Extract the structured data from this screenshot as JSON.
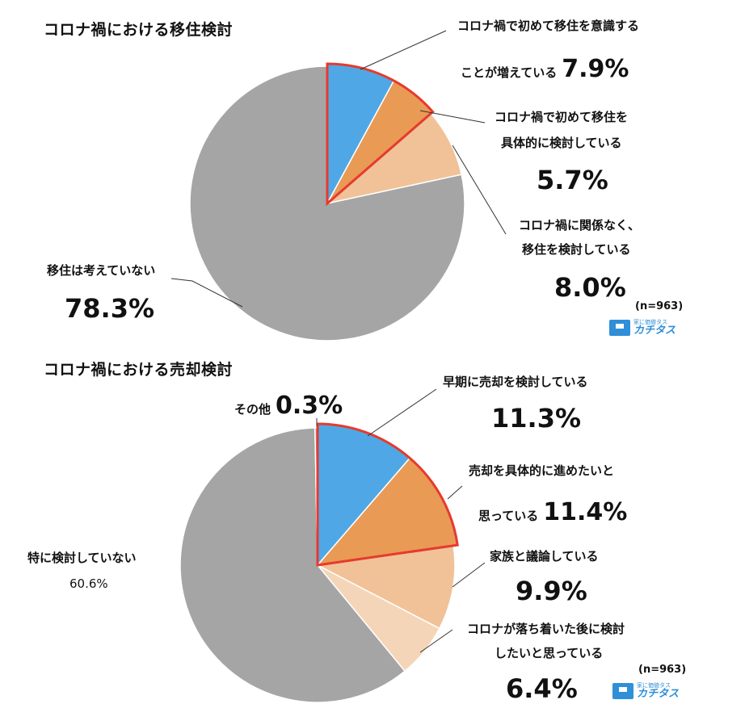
{
  "colors": {
    "gray": "#a5a5a5",
    "blue": "#4fa8e5",
    "orange": "#e99a55",
    "peach": "#f1c297",
    "light_peach": "#f5d5b8",
    "highlight": "#e63a2e",
    "leader": "#333333",
    "logo_blue": "#2f8fd8"
  },
  "logo": {
    "small": "家に価値タス",
    "main": "カチタス"
  },
  "chart_data": [
    {
      "type": "pie",
      "title": "コロナ禍における移住検討",
      "sample_note": "(n=963)",
      "slices": [
        {
          "label_lines": [
            "コロナ禍で初めて移住を意識する",
            "ことが増えている"
          ],
          "value": 7.9,
          "value_text": "7.9%",
          "color_key": "blue",
          "highlighted": true
        },
        {
          "label_lines": [
            "コロナ禍で初めて移住を",
            "具体的に検討している"
          ],
          "value": 5.7,
          "value_text": "5.7%",
          "color_key": "orange",
          "highlighted": true
        },
        {
          "label_lines": [
            "コロナ禍に関係なく、",
            "移住を検討している"
          ],
          "value": 8.0,
          "value_text": "8.0%",
          "color_key": "peach",
          "highlighted": false
        },
        {
          "label_lines": [
            "移住は考えていない"
          ],
          "value": 78.3,
          "value_text": "78.3%",
          "color_key": "gray",
          "highlighted": false
        }
      ]
    },
    {
      "type": "pie",
      "title": "コロナ禍における売却検討",
      "sample_note": "(n=963)",
      "slices": [
        {
          "label_lines": [
            "早期に売却を検討している"
          ],
          "value": 11.3,
          "value_text": "11.3%",
          "color_key": "blue",
          "highlighted": true
        },
        {
          "label_lines": [
            "売却を具体的に進めたいと",
            "思っている"
          ],
          "value": 11.4,
          "value_text": "11.4%",
          "color_key": "orange",
          "highlighted": true
        },
        {
          "label_lines": [
            "家族と議論している"
          ],
          "value": 9.9,
          "value_text": "9.9%",
          "color_key": "peach",
          "highlighted": false
        },
        {
          "label_lines": [
            "コロナが落ち着いた後に検討",
            "したいと思っている"
          ],
          "value": 6.4,
          "value_text": "6.4%",
          "color_key": "light_peach",
          "highlighted": false
        },
        {
          "label_lines": [
            "特に検討していない"
          ],
          "value": 60.6,
          "value_text": "60.6%",
          "color_key": "gray",
          "highlighted": false
        },
        {
          "label_lines": [
            "その他"
          ],
          "value": 0.3,
          "value_text": "0.3%",
          "color_key": "gray",
          "highlighted": false
        }
      ]
    }
  ]
}
